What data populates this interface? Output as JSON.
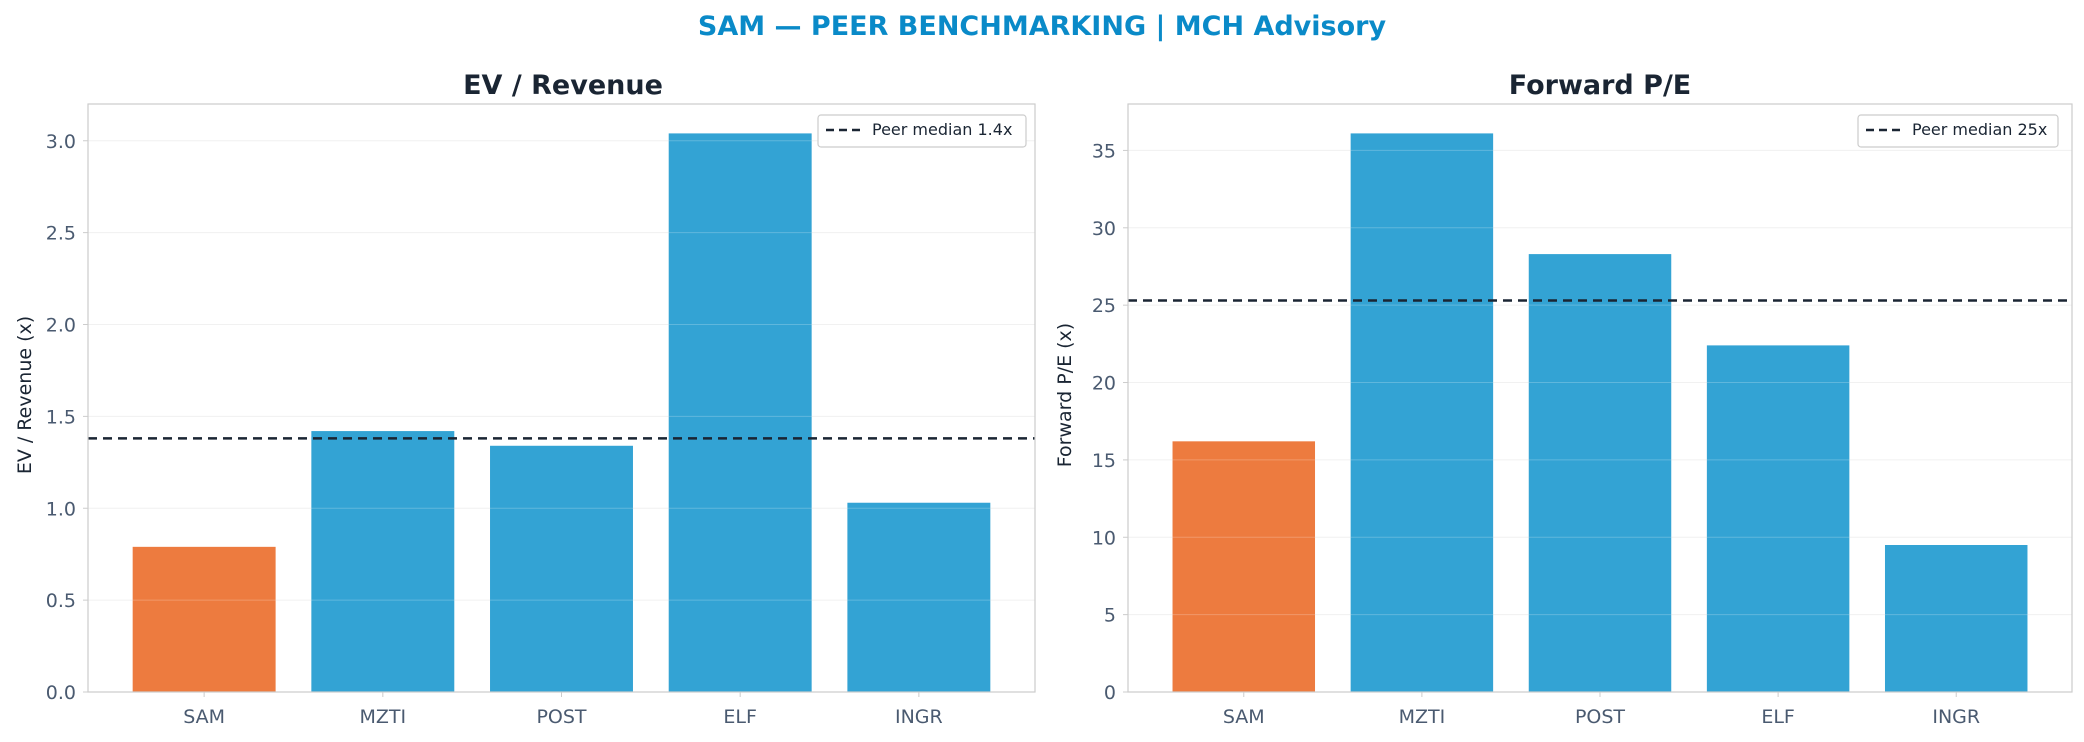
{
  "figure": {
    "suptitle": "SAM — PEER BENCHMARKING | MCH Advisory",
    "suptitle_color": "#0a8ac8"
  },
  "colors": {
    "highlight": "#ed7b3f",
    "peer": "#33a3d4",
    "median_line": "#1a2533",
    "axis_spine": "#cccccc",
    "grid": "#eeeeee",
    "tick_text": "#4a5a70",
    "title_text": "#1a2533"
  },
  "chart_data": [
    {
      "type": "bar",
      "title": "EV / Revenue",
      "xlabel": "",
      "ylabel": "EV / Revenue (x)",
      "categories": [
        "SAM",
        "MZTI",
        "POST",
        "ELF",
        "INGR"
      ],
      "values": [
        0.79,
        1.42,
        1.34,
        3.04,
        1.03
      ],
      "highlight_category": "SAM",
      "ylim": [
        0,
        3.2
      ],
      "yticks": [
        0.0,
        0.5,
        1.0,
        1.5,
        2.0,
        2.5,
        3.0
      ],
      "ytick_labels": [
        "0.0",
        "0.5",
        "1.0",
        "1.5",
        "2.0",
        "2.5",
        "3.0"
      ],
      "grid": true,
      "reference_line": {
        "value": 1.38,
        "label": "Peer median 1.4x",
        "style": "dashed"
      },
      "legend_position": "top-right"
    },
    {
      "type": "bar",
      "title": "Forward P/E",
      "xlabel": "",
      "ylabel": "Forward P/E (x)",
      "categories": [
        "SAM",
        "MZTI",
        "POST",
        "ELF",
        "INGR"
      ],
      "values": [
        16.2,
        36.1,
        28.3,
        22.4,
        9.5
      ],
      "highlight_category": "SAM",
      "ylim": [
        0,
        38
      ],
      "yticks": [
        0,
        5,
        10,
        15,
        20,
        25,
        30,
        35
      ],
      "ytick_labels": [
        "0",
        "5",
        "10",
        "15",
        "20",
        "25",
        "30",
        "35"
      ],
      "grid": true,
      "reference_line": {
        "value": 25.3,
        "label": "Peer median 25x",
        "style": "dashed"
      },
      "legend_position": "top-right"
    }
  ]
}
